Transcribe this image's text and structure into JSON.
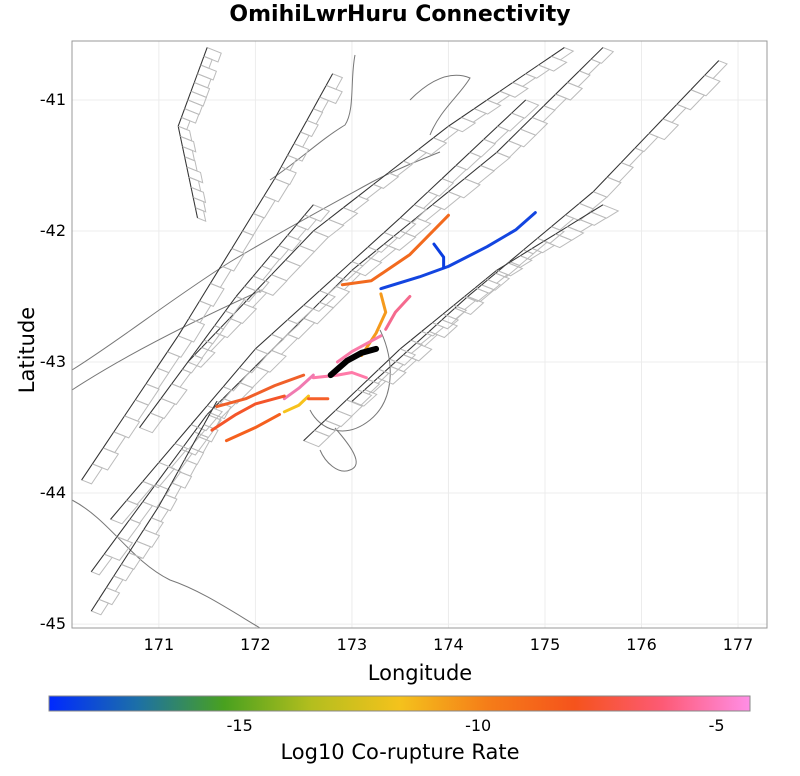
{
  "title": "OmihiLwrHuru Connectivity",
  "xlabel": "Longitude",
  "ylabel": "Latitude",
  "x_ticks": [
    "171",
    "172",
    "173",
    "174",
    "175",
    "176",
    "177"
  ],
  "y_ticks": [
    "-41",
    "-42",
    "-43",
    "-44",
    "-45"
  ],
  "colorbar": {
    "title": "Log10 Co-rupture Rate",
    "ticks": [
      "-15",
      "-10",
      "-5"
    ],
    "tick_values": [
      -15,
      -10,
      -5
    ],
    "range": [
      -19,
      -4.3
    ],
    "colors": [
      "#0029ff",
      "#1c6fa8",
      "#49a11f",
      "#b4be1e",
      "#f4c21c",
      "#f57d18",
      "#f5531c",
      "#fd5a75",
      "#ff8ee6"
    ]
  },
  "chart_data": {
    "type": "map",
    "xlim": [
      170.1,
      177.3
    ],
    "ylim": [
      -45.03,
      -40.55
    ],
    "grid": true,
    "highlighted_source_fault": {
      "name": "OmihiLwrHuru",
      "color": "#000000",
      "path": [
        [
          172.78,
          -43.1
        ],
        [
          172.95,
          -42.99
        ],
        [
          173.1,
          -42.93
        ],
        [
          173.25,
          -42.9
        ]
      ]
    },
    "co_rupture_faults": [
      {
        "color": "#1345e0",
        "path": [
          [
            173.3,
            -42.44
          ],
          [
            173.7,
            -42.35
          ],
          [
            174.0,
            -42.27
          ],
          [
            174.4,
            -42.12
          ],
          [
            174.7,
            -41.99
          ],
          [
            174.9,
            -41.86
          ]
        ]
      },
      {
        "color": "#0a3de0",
        "path": [
          [
            173.85,
            -42.1
          ],
          [
            173.95,
            -42.2
          ],
          [
            173.95,
            -42.28
          ]
        ]
      },
      {
        "color": "#f26a1e",
        "path": [
          [
            172.9,
            -42.41
          ],
          [
            173.2,
            -42.38
          ],
          [
            173.6,
            -42.18
          ],
          [
            173.8,
            -42.03
          ],
          [
            174.0,
            -41.88
          ]
        ]
      },
      {
        "color": "#f59a1c",
        "path": [
          [
            173.1,
            -42.95
          ],
          [
            173.25,
            -42.78
          ],
          [
            173.35,
            -42.62
          ],
          [
            173.3,
            -42.48
          ]
        ]
      },
      {
        "color": "#f56a8e",
        "path": [
          [
            173.35,
            -42.75
          ],
          [
            173.45,
            -42.62
          ],
          [
            173.6,
            -42.5
          ]
        ]
      },
      {
        "color": "#fa7aa8",
        "path": [
          [
            172.85,
            -43.0
          ],
          [
            173.0,
            -42.92
          ],
          [
            173.15,
            -42.86
          ],
          [
            173.3,
            -42.8
          ]
        ]
      },
      {
        "color": "#ff7aa8",
        "path": [
          [
            172.6,
            -43.12
          ],
          [
            172.85,
            -43.1
          ],
          [
            173.0,
            -43.08
          ],
          [
            173.15,
            -43.12
          ]
        ]
      },
      {
        "color": "#f07ab0",
        "path": [
          [
            172.3,
            -43.28
          ],
          [
            172.45,
            -43.2
          ],
          [
            172.6,
            -43.1
          ]
        ]
      },
      {
        "color": "#f0602a",
        "path": [
          [
            171.6,
            -43.34
          ],
          [
            171.9,
            -43.28
          ],
          [
            172.2,
            -43.18
          ],
          [
            172.5,
            -43.1
          ]
        ]
      },
      {
        "color": "#f4552a",
        "path": [
          [
            171.55,
            -43.52
          ],
          [
            171.8,
            -43.4
          ],
          [
            172.0,
            -43.32
          ],
          [
            172.3,
            -43.26
          ]
        ]
      },
      {
        "color": "#f5601e",
        "path": [
          [
            171.7,
            -43.6
          ],
          [
            172.0,
            -43.5
          ],
          [
            172.25,
            -43.4
          ]
        ]
      },
      {
        "color": "#f7c21c",
        "path": [
          [
            172.3,
            -43.38
          ],
          [
            172.45,
            -43.33
          ],
          [
            172.55,
            -43.26
          ]
        ]
      },
      {
        "color": "#f5602a",
        "path": [
          [
            172.55,
            -43.28
          ],
          [
            172.75,
            -43.28
          ]
        ]
      }
    ]
  }
}
